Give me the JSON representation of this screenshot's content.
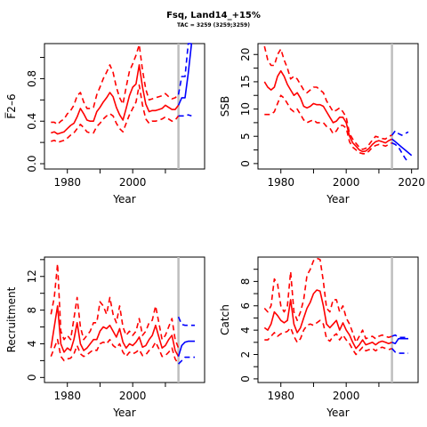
{
  "title": "Fsq, Land14_+15%",
  "subtitle": "TAC = 3259 (3259;3259)",
  "colors": {
    "history": "#ff0000",
    "projection": "#0000ff",
    "divider": "#bebebe"
  },
  "chart_data": [
    {
      "type": "line",
      "panel": "top-left",
      "xlabel": "Year",
      "ylabel": "F̅2–6",
      "xlim": [
        1973,
        2022
      ],
      "ylim": [
        -0.05,
        1.13
      ],
      "xticks": [
        "1980",
        "2000"
      ],
      "yticks": [
        "0.0",
        "0.4",
        "0.8"
      ],
      "ytick_values": [
        0.0,
        0.4,
        0.8
      ],
      "divider_x": 2014,
      "history": {
        "x": [
          1975,
          1976,
          1977,
          1978,
          1979,
          1980,
          1981,
          1982,
          1983,
          1984,
          1985,
          1986,
          1987,
          1988,
          1989,
          1990,
          1991,
          1992,
          1993,
          1994,
          1995,
          1996,
          1997,
          1998,
          1999,
          2000,
          2001,
          2002,
          2003,
          2004,
          2005,
          2006,
          2007,
          2008,
          2009,
          2010,
          2011,
          2012,
          2013,
          2014
        ],
        "mid": [
          0.29,
          0.3,
          0.28,
          0.29,
          0.3,
          0.33,
          0.36,
          0.38,
          0.44,
          0.52,
          0.47,
          0.41,
          0.4,
          0.4,
          0.49,
          0.53,
          0.58,
          0.62,
          0.67,
          0.63,
          0.53,
          0.46,
          0.41,
          0.52,
          0.64,
          0.72,
          0.75,
          0.93,
          0.72,
          0.56,
          0.49,
          0.5,
          0.5,
          0.51,
          0.52,
          0.55,
          0.53,
          0.51,
          0.51,
          0.55
        ],
        "upper": [
          0.39,
          0.39,
          0.37,
          0.4,
          0.42,
          0.47,
          0.5,
          0.55,
          0.64,
          0.67,
          0.58,
          0.52,
          0.52,
          0.53,
          0.65,
          0.72,
          0.8,
          0.86,
          0.93,
          0.86,
          0.72,
          0.62,
          0.56,
          0.72,
          0.87,
          0.94,
          1.02,
          1.12,
          0.88,
          0.7,
          0.6,
          0.61,
          0.62,
          0.63,
          0.64,
          0.66,
          0.63,
          0.61,
          0.62,
          0.65
        ],
        "lower": [
          0.21,
          0.22,
          0.2,
          0.21,
          0.22,
          0.24,
          0.27,
          0.29,
          0.33,
          0.37,
          0.34,
          0.3,
          0.29,
          0.29,
          0.35,
          0.38,
          0.42,
          0.45,
          0.47,
          0.45,
          0.38,
          0.33,
          0.3,
          0.38,
          0.46,
          0.52,
          0.58,
          0.74,
          0.55,
          0.42,
          0.38,
          0.4,
          0.4,
          0.41,
          0.42,
          0.44,
          0.42,
          0.4,
          0.41,
          0.45
        ]
      },
      "projection": {
        "x": [
          2014,
          2015,
          2016,
          2017,
          2018
        ],
        "mid": [
          0.55,
          0.62,
          0.62,
          0.85,
          1.13
        ],
        "upper": [
          0.65,
          0.82,
          0.82,
          1.13,
          1.13
        ],
        "lower": [
          0.45,
          0.45,
          0.45,
          0.46,
          0.45
        ]
      }
    },
    {
      "type": "line",
      "panel": "top-right",
      "xlabel": "Year",
      "ylabel": "SSB",
      "xlim": [
        1973,
        2022
      ],
      "ylim": [
        -1,
        22
      ],
      "xticks": [
        "1980",
        "2000",
        "2020"
      ],
      "yticks": [
        "0",
        "5",
        "10",
        "15",
        "20"
      ],
      "ytick_values": [
        0,
        5,
        10,
        15,
        20
      ],
      "divider_x": 2014,
      "history": {
        "x": [
          1975,
          1976,
          1977,
          1978,
          1979,
          1980,
          1981,
          1982,
          1983,
          1984,
          1985,
          1986,
          1987,
          1988,
          1989,
          1990,
          1991,
          1992,
          1993,
          1994,
          1995,
          1996,
          1997,
          1998,
          1999,
          2000,
          2001,
          2002,
          2003,
          2004,
          2005,
          2006,
          2007,
          2008,
          2009,
          2010,
          2011,
          2012,
          2013,
          2014
        ],
        "mid": [
          15.0,
          14.0,
          13.5,
          14.0,
          16.0,
          17.0,
          16.0,
          14.5,
          13.5,
          12.5,
          13.0,
          12.0,
          10.5,
          10.2,
          10.5,
          11.0,
          10.8,
          10.8,
          10.5,
          9.5,
          8.5,
          7.5,
          7.8,
          8.5,
          8.5,
          7.5,
          5.0,
          3.8,
          3.2,
          2.5,
          2.2,
          2.3,
          2.8,
          3.5,
          4.0,
          4.2,
          4.0,
          3.8,
          4.2,
          4.5
        ],
        "upper": [
          21.5,
          19.0,
          18.0,
          18.0,
          20.0,
          21.0,
          19.0,
          17.5,
          15.5,
          16.0,
          15.5,
          14.5,
          13.5,
          13.0,
          13.5,
          14.0,
          14.0,
          13.5,
          13.0,
          11.5,
          10.5,
          9.5,
          9.8,
          10.2,
          9.5,
          8.5,
          5.5,
          4.5,
          3.7,
          3.0,
          2.6,
          2.8,
          3.5,
          4.3,
          5.0,
          4.8,
          4.6,
          4.5,
          5.0,
          5.2
        ],
        "lower": [
          9.0,
          9.0,
          9.0,
          9.5,
          11.0,
          12.5,
          12.0,
          11.0,
          10.0,
          9.5,
          10.0,
          9.0,
          8.0,
          7.5,
          7.8,
          8.0,
          7.5,
          7.5,
          7.5,
          6.8,
          6.5,
          5.5,
          6.0,
          7.0,
          7.0,
          6.5,
          4.0,
          3.0,
          2.5,
          2.0,
          1.8,
          1.8,
          2.3,
          3.0,
          3.3,
          3.5,
          3.4,
          3.2,
          3.5,
          3.8
        ]
      },
      "projection": {
        "x": [
          2014,
          2015,
          2016,
          2017,
          2018,
          2019,
          2020
        ],
        "mid": [
          4.5,
          4.0,
          3.5,
          3.0,
          2.5,
          2.0,
          1.5
        ],
        "upper": [
          5.2,
          6.0,
          5.5,
          5.2,
          5.5,
          5.8,
          null
        ],
        "lower": [
          3.8,
          3.5,
          3.0,
          2.0,
          1.0,
          0.2,
          null
        ]
      }
    },
    {
      "type": "line",
      "panel": "bottom-left",
      "xlabel": "Year",
      "ylabel": "Recruitment",
      "xlim": [
        1973,
        2022
      ],
      "ylim": [
        -0.6,
        14.3
      ],
      "xticks": [
        "1980",
        "2000"
      ],
      "yticks": [
        "0",
        "4",
        "8",
        "12"
      ],
      "ytick_values": [
        0,
        4,
        8,
        12
      ],
      "divider_x": 2014,
      "history": {
        "x": [
          1975,
          1976,
          1977,
          1978,
          1979,
          1980,
          1981,
          1982,
          1983,
          1984,
          1985,
          1986,
          1987,
          1988,
          1989,
          1990,
          1991,
          1992,
          1993,
          1994,
          1995,
          1996,
          1997,
          1998,
          1999,
          2000,
          2001,
          2002,
          2003,
          2004,
          2005,
          2006,
          2007,
          2008,
          2009,
          2010,
          2011,
          2012,
          2013,
          2014
        ],
        "mid": [
          3.5,
          6.0,
          8.5,
          4.0,
          3.0,
          3.5,
          3.2,
          4.5,
          6.5,
          4.0,
          3.2,
          3.5,
          4.0,
          4.5,
          4.5,
          5.5,
          6.0,
          5.8,
          6.2,
          5.5,
          4.8,
          5.8,
          4.2,
          3.5,
          4.0,
          3.8,
          4.2,
          4.8,
          3.6,
          3.8,
          4.5,
          5.0,
          6.2,
          4.8,
          3.5,
          3.8,
          4.5,
          5.0,
          3.2,
          2.5
        ],
        "upper": [
          7.5,
          9.5,
          13.5,
          5.5,
          4.5,
          5.0,
          4.5,
          7.0,
          9.5,
          6.0,
          4.5,
          5.0,
          5.5,
          6.5,
          6.5,
          9.0,
          8.5,
          7.5,
          9.5,
          7.5,
          6.5,
          8.5,
          6.0,
          5.0,
          5.5,
          5.0,
          5.5,
          7.0,
          5.0,
          5.5,
          6.5,
          6.8,
          8.5,
          6.5,
          4.5,
          5.0,
          6.0,
          7.0,
          4.5,
          3.5
        ],
        "lower": [
          2.5,
          3.5,
          4.5,
          2.5,
          2.0,
          2.2,
          2.3,
          2.8,
          3.8,
          2.8,
          2.5,
          2.7,
          3.0,
          3.3,
          3.2,
          4.0,
          4.2,
          4.0,
          4.5,
          3.8,
          3.5,
          4.0,
          3.0,
          2.5,
          3.0,
          2.8,
          3.0,
          3.3,
          2.6,
          2.7,
          3.2,
          3.5,
          4.2,
          3.4,
          2.5,
          2.6,
          3.0,
          3.5,
          2.2,
          1.6
        ]
      },
      "projection": {
        "x": [
          2014,
          2015,
          2016,
          2017,
          2018,
          2019
        ],
        "mid": [
          2.5,
          3.8,
          4.2,
          4.3,
          4.3,
          4.3
        ],
        "upper": [
          7.2,
          6.3,
          6.2,
          6.2,
          6.2,
          6.2
        ],
        "lower": [
          1.6,
          2.0,
          2.4,
          2.4,
          2.4,
          2.4
        ]
      }
    },
    {
      "type": "line",
      "panel": "bottom-right",
      "xlabel": "Year",
      "ylabel": "Catch",
      "xlim": [
        1973,
        2022
      ],
      "ylim": [
        -0.3,
        10.0
      ],
      "xticks": [
        "1980",
        "2000"
      ],
      "yticks": [
        "0",
        "2",
        "4",
        "6",
        "8"
      ],
      "ytick_values": [
        0,
        2,
        4,
        6,
        8
      ],
      "divider_x": 2014,
      "history": {
        "x": [
          1975,
          1976,
          1977,
          1978,
          1979,
          1980,
          1981,
          1982,
          1983,
          1984,
          1985,
          1986,
          1987,
          1988,
          1989,
          1990,
          1991,
          1992,
          1993,
          1994,
          1995,
          1996,
          1997,
          1998,
          1999,
          2000,
          2001,
          2002,
          2003,
          2004,
          2005,
          2006,
          2007,
          2008,
          2009,
          2010,
          2011,
          2012,
          2013,
          2014
        ],
        "mid": [
          4.2,
          4.0,
          4.5,
          5.5,
          5.2,
          4.8,
          4.6,
          4.8,
          6.5,
          4.5,
          3.8,
          4.2,
          5.0,
          5.8,
          6.3,
          7.0,
          7.3,
          7.2,
          6.0,
          4.5,
          4.2,
          4.5,
          4.8,
          4.0,
          4.6,
          4.0,
          3.6,
          3.0,
          2.5,
          2.8,
          3.2,
          2.8,
          2.9,
          3.0,
          2.8,
          3.0,
          3.1,
          3.0,
          2.9,
          3.0
        ],
        "upper": [
          5.8,
          5.5,
          6.0,
          8.2,
          7.8,
          6.0,
          5.5,
          6.0,
          8.8,
          5.5,
          4.8,
          5.5,
          6.5,
          8.5,
          9.0,
          9.7,
          9.9,
          9.8,
          8.0,
          5.8,
          5.5,
          6.5,
          6.5,
          5.5,
          6.0,
          5.0,
          4.5,
          3.8,
          3.0,
          3.5,
          4.0,
          3.3,
          3.4,
          3.5,
          3.3,
          3.5,
          3.6,
          3.5,
          3.4,
          3.5
        ],
        "lower": [
          3.2,
          3.2,
          3.5,
          3.8,
          3.5,
          3.7,
          3.8,
          3.9,
          4.2,
          3.5,
          3.0,
          3.3,
          4.0,
          4.4,
          4.5,
          4.4,
          4.6,
          4.8,
          4.5,
          3.3,
          3.1,
          3.5,
          3.7,
          3.2,
          3.6,
          3.2,
          2.9,
          2.4,
          2.0,
          2.3,
          2.6,
          2.3,
          2.4,
          2.5,
          2.3,
          2.5,
          2.6,
          2.5,
          2.4,
          2.5
        ]
      },
      "projection": {
        "x": [
          2014,
          2015,
          2016,
          2017,
          2018,
          2019
        ],
        "mid": [
          3.0,
          2.9,
          3.3,
          3.3,
          3.3,
          3.3
        ],
        "upper": [
          3.5,
          3.6,
          3.4,
          3.4,
          3.4,
          3.4
        ],
        "lower": [
          2.5,
          2.2,
          2.1,
          2.1,
          2.1,
          2.1
        ]
      }
    }
  ]
}
